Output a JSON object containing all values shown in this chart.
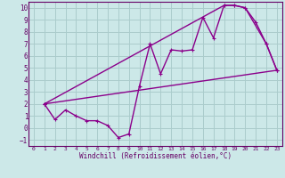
{
  "xlabel": "Windchill (Refroidissement éolien,°C)",
  "ylabel": "",
  "xlim": [
    -0.5,
    23.5
  ],
  "ylim": [
    -1.5,
    10.5
  ],
  "yticks": [
    -1,
    0,
    1,
    2,
    3,
    4,
    5,
    6,
    7,
    8,
    9,
    10
  ],
  "xticks": [
    0,
    1,
    2,
    3,
    4,
    5,
    6,
    7,
    8,
    9,
    10,
    11,
    12,
    13,
    14,
    15,
    16,
    17,
    18,
    19,
    20,
    21,
    22,
    23
  ],
  "line_color": "#8b008b",
  "bg_color": "#cce8e8",
  "grid_color": "#aacccc",
  "line1_x": [
    1,
    2,
    3,
    4,
    5,
    6,
    7,
    8,
    9,
    10,
    11,
    12,
    13,
    14,
    15,
    16,
    17,
    18,
    19,
    20,
    21,
    22,
    23
  ],
  "line1_y": [
    2,
    0.7,
    1.5,
    1.0,
    0.6,
    0.6,
    0.2,
    -0.8,
    -0.5,
    3.5,
    7.0,
    4.5,
    6.5,
    6.4,
    6.5,
    9.2,
    7.5,
    10.2,
    10.2,
    10.0,
    8.8,
    7.0,
    4.8
  ],
  "line2_x": [
    1,
    23
  ],
  "line2_y": [
    2,
    4.8
  ],
  "line3_x": [
    1,
    18,
    19,
    20,
    22,
    23
  ],
  "line3_y": [
    2,
    10.2,
    10.2,
    10.0,
    7.0,
    4.8
  ]
}
